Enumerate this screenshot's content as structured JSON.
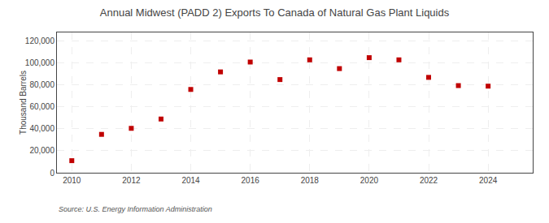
{
  "chart_data": {
    "type": "scatter",
    "title": "Annual Midwest (PADD 2) Exports To Canada of Natural Gas Plant Liquids",
    "ylabel": "Thousand Barrels",
    "annotation": "Source: U.S. Energy Information Administration",
    "x": [
      2010,
      2011,
      2012,
      2013,
      2014,
      2015,
      2016,
      2017,
      2018,
      2019,
      2020,
      2021,
      2022,
      2023,
      2024
    ],
    "values": [
      11000,
      35000,
      40500,
      49000,
      76000,
      92000,
      101000,
      85000,
      103000,
      95000,
      105000,
      103000,
      87000,
      79500,
      79000
    ],
    "color": "#c00000",
    "marker": "square",
    "xlim": [
      2009.5,
      2025.5
    ],
    "xticks": [
      2010,
      2012,
      2014,
      2016,
      2018,
      2020,
      2022,
      2024
    ],
    "ylim": [
      0,
      128000
    ],
    "yticks": [
      0,
      {
        "value": 20000,
        "label": "20,000"
      },
      {
        "value": 40000,
        "label": "40,000"
      },
      {
        "value": 60000,
        "label": "60,000"
      },
      {
        "value": 80000,
        "label": "80,000"
      },
      {
        "value": 100000,
        "label": "100,000"
      },
      {
        "value": 120000,
        "label": "120,000"
      }
    ],
    "grid": true
  }
}
